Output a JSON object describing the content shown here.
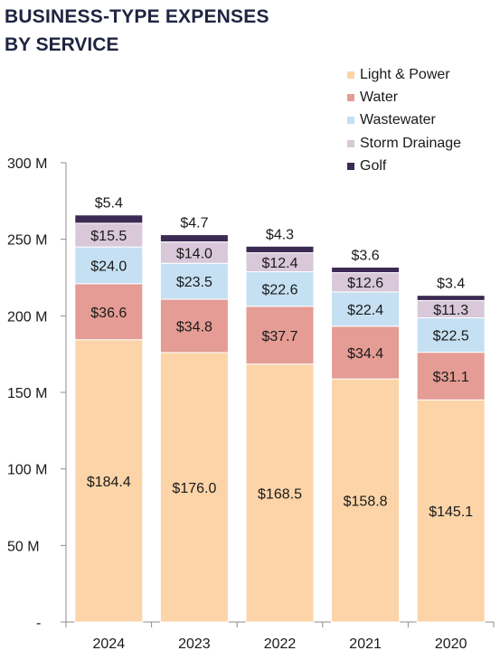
{
  "header": {
    "title": "BUSINESS-TYPE EXPENSES",
    "subtitle": "BY SERVICE"
  },
  "chart_data": {
    "type": "bar",
    "stacked": true,
    "title": "BUSINESS-TYPE EXPENSES",
    "subtitle": "BY SERVICE",
    "xlabel": "",
    "ylabel": "",
    "categories": [
      "2024",
      "2023",
      "2022",
      "2021",
      "2020"
    ],
    "ylim": [
      0,
      300
    ],
    "y_ticks": [
      0,
      50,
      100,
      150,
      200,
      250,
      300
    ],
    "y_tick_labels": [
      "-",
      "50 M",
      "100 M",
      "150 M",
      "200 M",
      "250 M",
      "300 M"
    ],
    "grid": false,
    "legend_position": "top-right",
    "series": [
      {
        "name": "Light & Power",
        "color": "#fcd4a8",
        "values": [
          184.4,
          176.0,
          168.5,
          158.8,
          145.1
        ],
        "labels": [
          "$184.4",
          "$176.0",
          "$168.5",
          "$158.8",
          "$145.1"
        ]
      },
      {
        "name": "Water",
        "color": "#e49c94",
        "values": [
          36.6,
          34.8,
          37.7,
          34.4,
          31.1
        ],
        "labels": [
          "$36.6",
          "$34.8",
          "$37.7",
          "$34.4",
          "$31.1"
        ]
      },
      {
        "name": "Wastewater",
        "color": "#c5e0f2",
        "values": [
          24.0,
          23.5,
          22.6,
          22.4,
          22.5
        ],
        "labels": [
          "$24.0",
          "$23.5",
          "$22.6",
          "$22.4",
          "$22.5"
        ]
      },
      {
        "name": "Storm Drainage",
        "color": "#d8c8d9",
        "values": [
          15.5,
          14.0,
          12.4,
          12.6,
          11.3
        ],
        "labels": [
          "$15.5",
          "$14.0",
          "$12.4",
          "$12.6",
          "$11.3"
        ]
      },
      {
        "name": "Golf",
        "color": "#3c2a54",
        "values": [
          5.4,
          4.7,
          4.3,
          3.6,
          3.4
        ],
        "labels": [
          "$5.4",
          "$4.7",
          "$4.3",
          "$3.6",
          "$3.4"
        ]
      }
    ]
  }
}
